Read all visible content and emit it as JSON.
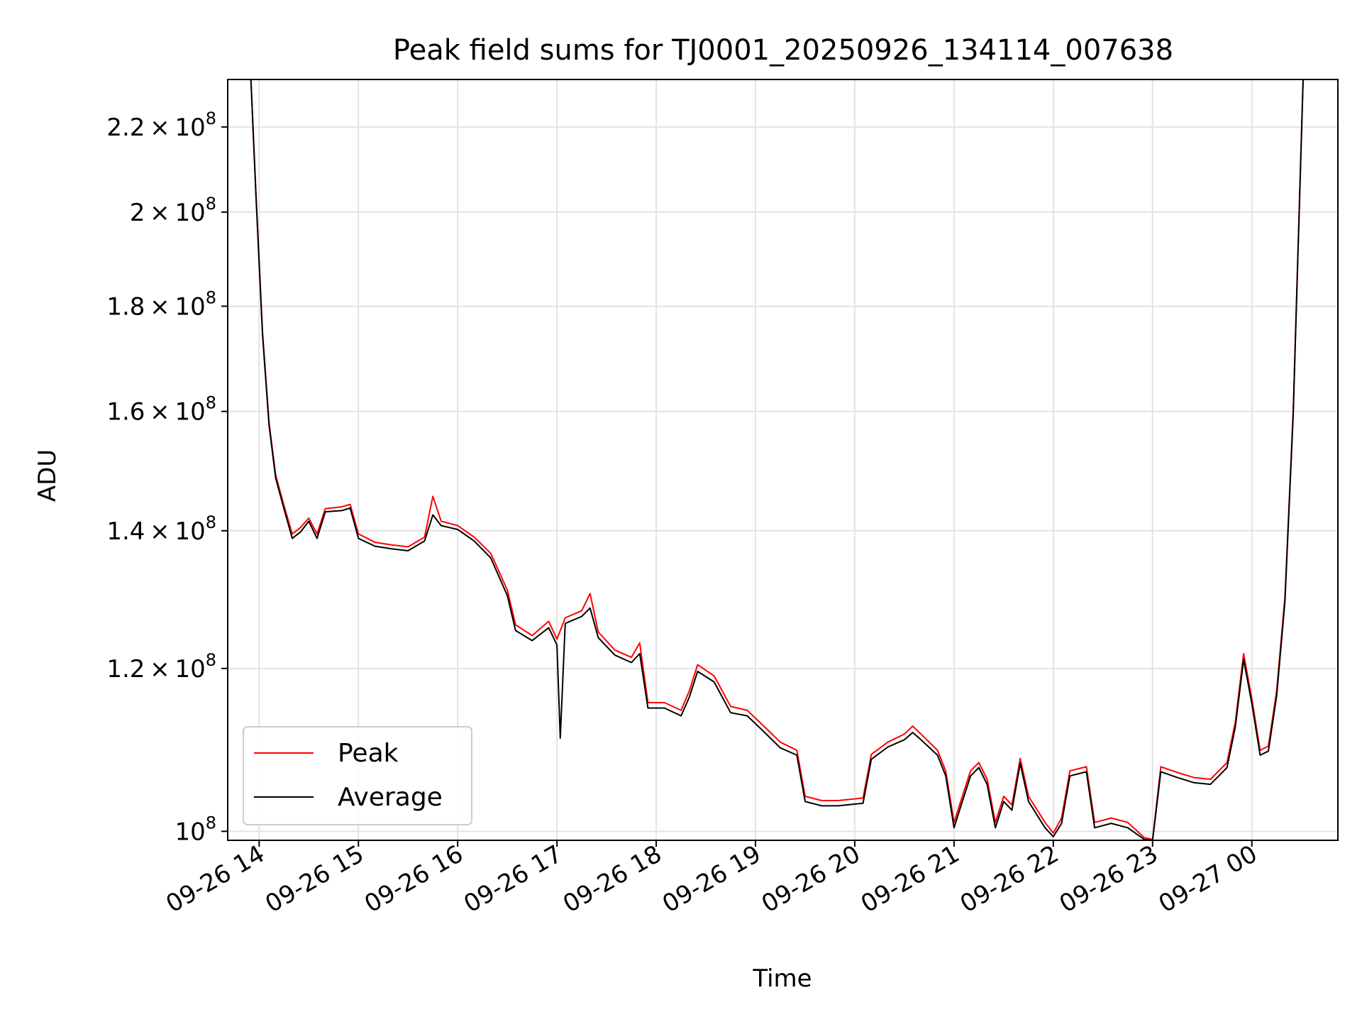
{
  "chart_data": {
    "type": "line",
    "title": "Peak field sums for TJ0001_20250926_134114_007638",
    "xlabel": "Time",
    "ylabel": "ADU",
    "y_scale": "log",
    "ylim": [
      99000000,
      232000000
    ],
    "xlim": [
      "2025-09-26 13:41",
      "2025-09-27 00:52"
    ],
    "grid": true,
    "legend_position": "lower-left",
    "x_ticks": [
      {
        "t": "2025-09-26 14:00",
        "label": "09-26 14"
      },
      {
        "t": "2025-09-26 15:00",
        "label": "09-26 15"
      },
      {
        "t": "2025-09-26 16:00",
        "label": "09-26 16"
      },
      {
        "t": "2025-09-26 17:00",
        "label": "09-26 17"
      },
      {
        "t": "2025-09-26 18:00",
        "label": "09-26 18"
      },
      {
        "t": "2025-09-26 19:00",
        "label": "09-26 19"
      },
      {
        "t": "2025-09-26 20:00",
        "label": "09-26 20"
      },
      {
        "t": "2025-09-26 21:00",
        "label": "09-26 21"
      },
      {
        "t": "2025-09-26 22:00",
        "label": "09-26 22"
      },
      {
        "t": "2025-09-26 23:00",
        "label": "09-26 23"
      },
      {
        "t": "2025-09-27 00:00",
        "label": "09-27 00"
      }
    ],
    "y_ticks": [
      {
        "v": 100000000,
        "mant": "",
        "exp": "8",
        "base": "10"
      },
      {
        "v": 120000000,
        "mant": "1.2",
        "exp": "8",
        "base": "10"
      },
      {
        "v": 140000000,
        "mant": "1.4",
        "exp": "8",
        "base": "10"
      },
      {
        "v": 160000000,
        "mant": "1.6",
        "exp": "8",
        "base": "10"
      },
      {
        "v": 180000000,
        "mant": "1.8",
        "exp": "8",
        "base": "10"
      },
      {
        "v": 200000000,
        "mant": "2",
        "exp": "8",
        "base": "10"
      },
      {
        "v": 220000000,
        "mant": "2.2",
        "exp": "8",
        "base": "10"
      }
    ],
    "series": [
      {
        "name": "Peak",
        "color": "#ff0000",
        "points": [
          [
            "2025-09-26 13:55",
            232000000
          ],
          [
            "2025-09-26 13:58",
            205000000
          ],
          [
            "2025-09-26 14:02",
            175000000
          ],
          [
            "2025-09-26 14:06",
            158000000
          ],
          [
            "2025-09-26 14:10",
            149000000
          ],
          [
            "2025-09-26 14:15",
            144000000
          ],
          [
            "2025-09-26 14:20",
            139500000
          ],
          [
            "2025-09-26 14:25",
            140500000
          ],
          [
            "2025-09-26 14:30",
            142000000
          ],
          [
            "2025-09-26 14:35",
            139500000
          ],
          [
            "2025-09-26 14:40",
            143500000
          ],
          [
            "2025-09-26 14:50",
            143800000
          ],
          [
            "2025-09-26 14:55",
            144200000
          ],
          [
            "2025-09-26 15:00",
            139500000
          ],
          [
            "2025-09-26 15:10",
            138200000
          ],
          [
            "2025-09-26 15:20",
            137800000
          ],
          [
            "2025-09-26 15:30",
            137500000
          ],
          [
            "2025-09-26 15:40",
            139000000
          ],
          [
            "2025-09-26 15:45",
            145500000
          ],
          [
            "2025-09-26 15:50",
            141500000
          ],
          [
            "2025-09-26 16:00",
            140800000
          ],
          [
            "2025-09-26 16:10",
            139000000
          ],
          [
            "2025-09-26 16:20",
            136500000
          ],
          [
            "2025-09-26 16:30",
            131000000
          ],
          [
            "2025-09-26 16:35",
            126000000
          ],
          [
            "2025-09-26 16:45",
            124500000
          ],
          [
            "2025-09-26 16:55",
            126500000
          ],
          [
            "2025-09-26 17:00",
            124000000
          ],
          [
            "2025-09-26 17:05",
            127000000
          ],
          [
            "2025-09-26 17:15",
            128000000
          ],
          [
            "2025-09-26 17:20",
            130500000
          ],
          [
            "2025-09-26 17:25",
            125000000
          ],
          [
            "2025-09-26 17:35",
            122500000
          ],
          [
            "2025-09-26 17:45",
            121500000
          ],
          [
            "2025-09-26 17:50",
            123500000
          ],
          [
            "2025-09-26 17:55",
            115500000
          ],
          [
            "2025-09-26 18:05",
            115500000
          ],
          [
            "2025-09-26 18:15",
            114500000
          ],
          [
            "2025-09-26 18:20",
            117000000
          ],
          [
            "2025-09-26 18:25",
            120500000
          ],
          [
            "2025-09-26 18:35",
            119000000
          ],
          [
            "2025-09-26 18:45",
            115000000
          ],
          [
            "2025-09-26 18:55",
            114500000
          ],
          [
            "2025-09-26 19:05",
            112500000
          ],
          [
            "2025-09-26 19:15",
            110500000
          ],
          [
            "2025-09-26 19:25",
            109500000
          ],
          [
            "2025-09-26 19:30",
            104000000
          ],
          [
            "2025-09-26 19:40",
            103500000
          ],
          [
            "2025-09-26 19:50",
            103500000
          ],
          [
            "2025-09-26 20:05",
            103800000
          ],
          [
            "2025-09-26 20:10",
            109000000
          ],
          [
            "2025-09-26 20:20",
            110500000
          ],
          [
            "2025-09-26 20:30",
            111500000
          ],
          [
            "2025-09-26 20:35",
            112500000
          ],
          [
            "2025-09-26 20:40",
            111500000
          ],
          [
            "2025-09-26 20:50",
            109500000
          ],
          [
            "2025-09-26 20:55",
            107000000
          ],
          [
            "2025-09-26 21:00",
            101000000
          ],
          [
            "2025-09-26 21:05",
            104000000
          ],
          [
            "2025-09-26 21:10",
            107000000
          ],
          [
            "2025-09-26 21:15",
            108000000
          ],
          [
            "2025-09-26 21:20",
            106000000
          ],
          [
            "2025-09-26 21:25",
            101000000
          ],
          [
            "2025-09-26 21:30",
            104000000
          ],
          [
            "2025-09-26 21:35",
            103000000
          ],
          [
            "2025-09-26 21:40",
            108500000
          ],
          [
            "2025-09-26 21:45",
            104000000
          ],
          [
            "2025-09-26 21:55",
            101000000
          ],
          [
            "2025-09-26 22:00",
            99800000
          ],
          [
            "2025-09-26 22:05",
            101500000
          ],
          [
            "2025-09-26 22:10",
            107000000
          ],
          [
            "2025-09-26 22:20",
            107500000
          ],
          [
            "2025-09-26 22:25",
            101000000
          ],
          [
            "2025-09-26 22:35",
            101500000
          ],
          [
            "2025-09-26 22:45",
            101000000
          ],
          [
            "2025-09-26 22:55",
            99300000
          ],
          [
            "2025-09-26 23:00",
            99100000
          ],
          [
            "2025-09-26 23:05",
            107500000
          ],
          [
            "2025-09-26 23:15",
            106800000
          ],
          [
            "2025-09-26 23:25",
            106200000
          ],
          [
            "2025-09-26 23:35",
            106000000
          ],
          [
            "2025-09-26 23:40",
            107000000
          ],
          [
            "2025-09-26 23:45",
            108000000
          ],
          [
            "2025-09-26 23:50",
            113000000
          ],
          [
            "2025-09-26 23:55",
            122000000
          ],
          [
            "2025-09-27 00:00",
            116000000
          ],
          [
            "2025-09-27 00:05",
            109500000
          ],
          [
            "2025-09-27 00:10",
            110000000
          ],
          [
            "2025-09-27 00:15",
            117000000
          ],
          [
            "2025-09-27 00:20",
            130000000
          ],
          [
            "2025-09-27 00:25",
            160000000
          ],
          [
            "2025-09-27 00:31",
            232000000
          ]
        ]
      },
      {
        "name": "Average",
        "color": "#000000",
        "points": [
          [
            "2025-09-26 13:55",
            232000000
          ],
          [
            "2025-09-26 13:58",
            204500000
          ],
          [
            "2025-09-26 14:02",
            174500000
          ],
          [
            "2025-09-26 14:06",
            157500000
          ],
          [
            "2025-09-26 14:10",
            148500000
          ],
          [
            "2025-09-26 14:15",
            143500000
          ],
          [
            "2025-09-26 14:20",
            138800000
          ],
          [
            "2025-09-26 14:25",
            139800000
          ],
          [
            "2025-09-26 14:30",
            141500000
          ],
          [
            "2025-09-26 14:35",
            138800000
          ],
          [
            "2025-09-26 14:40",
            143000000
          ],
          [
            "2025-09-26 14:50",
            143200000
          ],
          [
            "2025-09-26 14:55",
            143600000
          ],
          [
            "2025-09-26 15:00",
            138800000
          ],
          [
            "2025-09-26 15:10",
            137600000
          ],
          [
            "2025-09-26 15:20",
            137200000
          ],
          [
            "2025-09-26 15:30",
            136900000
          ],
          [
            "2025-09-26 15:40",
            138400000
          ],
          [
            "2025-09-26 15:45",
            142500000
          ],
          [
            "2025-09-26 15:50",
            140800000
          ],
          [
            "2025-09-26 16:00",
            140200000
          ],
          [
            "2025-09-26 16:10",
            138400000
          ],
          [
            "2025-09-26 16:20",
            135800000
          ],
          [
            "2025-09-26 16:30",
            130200000
          ],
          [
            "2025-09-26 16:35",
            125200000
          ],
          [
            "2025-09-26 16:45",
            123800000
          ],
          [
            "2025-09-26 16:55",
            125600000
          ],
          [
            "2025-09-26 17:00",
            123200000
          ],
          [
            "2025-09-26 17:02",
            111000000
          ],
          [
            "2025-09-26 17:05",
            126200000
          ],
          [
            "2025-09-26 17:15",
            127200000
          ],
          [
            "2025-09-26 17:20",
            128400000
          ],
          [
            "2025-09-26 17:25",
            124200000
          ],
          [
            "2025-09-26 17:35",
            121800000
          ],
          [
            "2025-09-26 17:45",
            120800000
          ],
          [
            "2025-09-26 17:50",
            122000000
          ],
          [
            "2025-09-26 17:55",
            114800000
          ],
          [
            "2025-09-26 18:05",
            114800000
          ],
          [
            "2025-09-26 18:15",
            113800000
          ],
          [
            "2025-09-26 18:20",
            116200000
          ],
          [
            "2025-09-26 18:25",
            119600000
          ],
          [
            "2025-09-26 18:35",
            118200000
          ],
          [
            "2025-09-26 18:45",
            114200000
          ],
          [
            "2025-09-26 18:55",
            113800000
          ],
          [
            "2025-09-26 19:05",
            111800000
          ],
          [
            "2025-09-26 19:15",
            109800000
          ],
          [
            "2025-09-26 19:25",
            108900000
          ],
          [
            "2025-09-26 19:30",
            103400000
          ],
          [
            "2025-09-26 19:40",
            102900000
          ],
          [
            "2025-09-26 19:50",
            102900000
          ],
          [
            "2025-09-26 20:05",
            103200000
          ],
          [
            "2025-09-26 20:10",
            108400000
          ],
          [
            "2025-09-26 20:20",
            109900000
          ],
          [
            "2025-09-26 20:30",
            110800000
          ],
          [
            "2025-09-26 20:35",
            111700000
          ],
          [
            "2025-09-26 20:40",
            110800000
          ],
          [
            "2025-09-26 20:50",
            108900000
          ],
          [
            "2025-09-26 20:55",
            106400000
          ],
          [
            "2025-09-26 21:00",
            100400000
          ],
          [
            "2025-09-26 21:05",
            103400000
          ],
          [
            "2025-09-26 21:10",
            106400000
          ],
          [
            "2025-09-26 21:15",
            107400000
          ],
          [
            "2025-09-26 21:20",
            105400000
          ],
          [
            "2025-09-26 21:25",
            100400000
          ],
          [
            "2025-09-26 21:30",
            103400000
          ],
          [
            "2025-09-26 21:35",
            102400000
          ],
          [
            "2025-09-26 21:40",
            107900000
          ],
          [
            "2025-09-26 21:45",
            103400000
          ],
          [
            "2025-09-26 21:55",
            100400000
          ],
          [
            "2025-09-26 22:00",
            99400000
          ],
          [
            "2025-09-26 22:05",
            100900000
          ],
          [
            "2025-09-26 22:10",
            106400000
          ],
          [
            "2025-09-26 22:20",
            106900000
          ],
          [
            "2025-09-26 22:25",
            100400000
          ],
          [
            "2025-09-26 22:35",
            100900000
          ],
          [
            "2025-09-26 22:45",
            100400000
          ],
          [
            "2025-09-26 22:55",
            99100000
          ],
          [
            "2025-09-26 23:00",
            99000000
          ],
          [
            "2025-09-26 23:05",
            106900000
          ],
          [
            "2025-09-26 23:15",
            106200000
          ],
          [
            "2025-09-26 23:25",
            105600000
          ],
          [
            "2025-09-26 23:35",
            105400000
          ],
          [
            "2025-09-26 23:40",
            106400000
          ],
          [
            "2025-09-26 23:45",
            107400000
          ],
          [
            "2025-09-26 23:50",
            112400000
          ],
          [
            "2025-09-26 23:55",
            121200000
          ],
          [
            "2025-09-27 00:00",
            115400000
          ],
          [
            "2025-09-27 00:05",
            108900000
          ],
          [
            "2025-09-27 00:10",
            109400000
          ],
          [
            "2025-09-27 00:15",
            116400000
          ],
          [
            "2025-09-27 00:20",
            129400000
          ],
          [
            "2025-09-27 00:25",
            159400000
          ],
          [
            "2025-09-27 00:31",
            232000000
          ]
        ]
      }
    ],
    "legend": [
      {
        "name": "Peak",
        "color": "#ff0000"
      },
      {
        "name": "Average",
        "color": "#000000"
      }
    ]
  }
}
